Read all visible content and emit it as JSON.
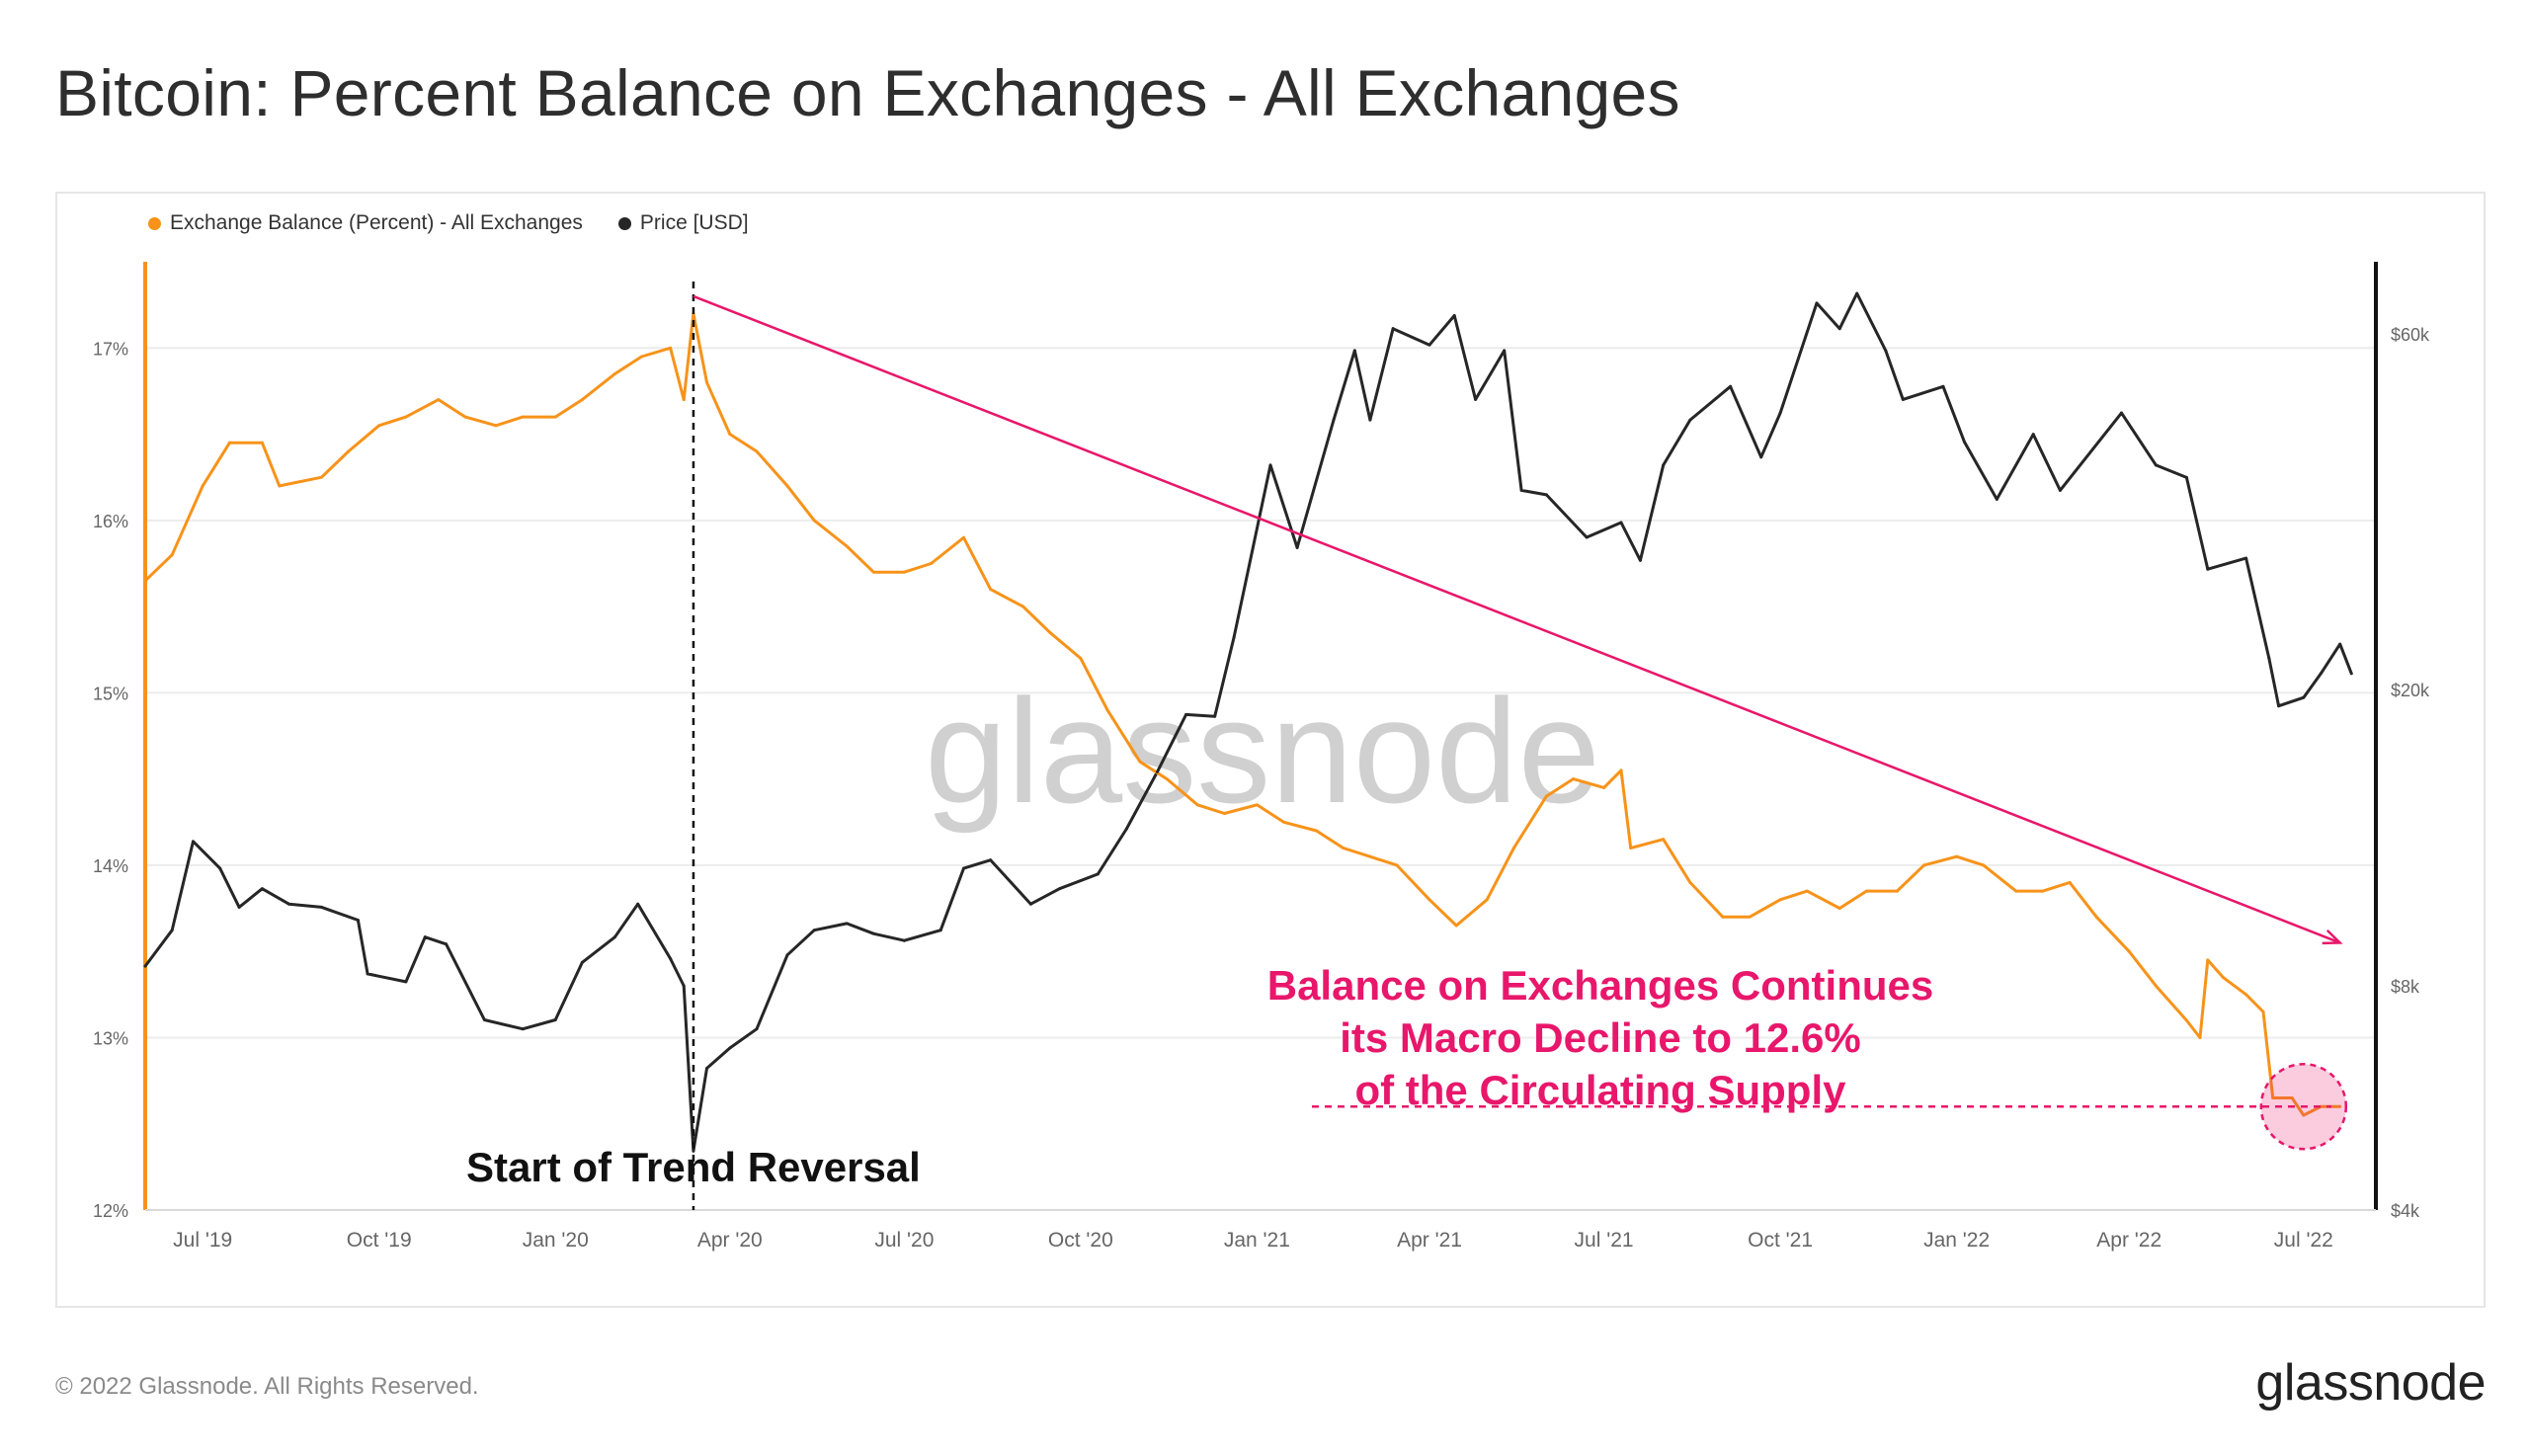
{
  "title": "Bitcoin: Percent Balance on Exchanges - All Exchanges",
  "footer": {
    "copyright": "© 2022 Glassnode. All Rights Reserved.",
    "logo_text": "glassnode"
  },
  "watermark": "glassnode",
  "colors": {
    "balance": "#f7931a",
    "price": "#262626",
    "annotation": "#e8176b",
    "grid": "#ececec",
    "axis_text": "#666666"
  },
  "chart_data": {
    "type": "line",
    "legend": [
      {
        "name": "Exchange Balance (Percent) - All Exchanges",
        "color": "#f7931a"
      },
      {
        "name": "Price [USD]",
        "color": "#262626"
      }
    ],
    "x_ticks": [
      "Jul '19",
      "Oct '19",
      "Jan '20",
      "Apr '20",
      "Jul '20",
      "Oct '20",
      "Jan '21",
      "Apr '21",
      "Jul '21",
      "Oct '21",
      "Jan '22",
      "Apr '22",
      "Jul '22"
    ],
    "y_left": {
      "ticks": [
        "17%",
        "16%",
        "15%",
        "14%",
        "13%",
        "12%"
      ],
      "values": [
        17,
        16,
        15,
        14,
        13,
        12
      ],
      "range": [
        12,
        17.5
      ]
    },
    "y_right": {
      "ticks": [
        "$60k",
        "$20k",
        "$8k",
        "$4k"
      ],
      "values": [
        60000,
        20000,
        8000,
        4000
      ],
      "scale": "log",
      "range": [
        4000,
        75000
      ]
    },
    "series": [
      {
        "name": "Exchange Balance (Percent) - All Exchanges",
        "axis": "left",
        "points": [
          [
            "2019-06-01",
            15.65
          ],
          [
            "2019-06-15",
            15.8
          ],
          [
            "2019-07-01",
            16.2
          ],
          [
            "2019-07-15",
            16.45
          ],
          [
            "2019-08-01",
            16.45
          ],
          [
            "2019-08-10",
            16.2
          ],
          [
            "2019-09-01",
            16.25
          ],
          [
            "2019-09-15",
            16.4
          ],
          [
            "2019-10-01",
            16.55
          ],
          [
            "2019-10-15",
            16.6
          ],
          [
            "2019-11-01",
            16.7
          ],
          [
            "2019-11-15",
            16.6
          ],
          [
            "2019-12-01",
            16.55
          ],
          [
            "2019-12-15",
            16.6
          ],
          [
            "2020-01-01",
            16.6
          ],
          [
            "2020-01-15",
            16.7
          ],
          [
            "2020-02-01",
            16.85
          ],
          [
            "2020-02-15",
            16.95
          ],
          [
            "2020-03-01",
            17.0
          ],
          [
            "2020-03-08",
            16.7
          ],
          [
            "2020-03-13",
            17.2
          ],
          [
            "2020-03-20",
            16.8
          ],
          [
            "2020-04-01",
            16.5
          ],
          [
            "2020-04-15",
            16.4
          ],
          [
            "2020-05-01",
            16.2
          ],
          [
            "2020-05-15",
            16.0
          ],
          [
            "2020-06-01",
            15.85
          ],
          [
            "2020-06-15",
            15.7
          ],
          [
            "2020-07-01",
            15.7
          ],
          [
            "2020-07-15",
            15.75
          ],
          [
            "2020-08-01",
            15.9
          ],
          [
            "2020-08-15",
            15.6
          ],
          [
            "2020-09-01",
            15.5
          ],
          [
            "2020-09-15",
            15.35
          ],
          [
            "2020-10-01",
            15.2
          ],
          [
            "2020-10-15",
            14.9
          ],
          [
            "2020-11-01",
            14.6
          ],
          [
            "2020-11-15",
            14.5
          ],
          [
            "2020-12-01",
            14.35
          ],
          [
            "2020-12-15",
            14.3
          ],
          [
            "2021-01-01",
            14.35
          ],
          [
            "2021-01-15",
            14.25
          ],
          [
            "2021-02-01",
            14.2
          ],
          [
            "2021-02-15",
            14.1
          ],
          [
            "2021-03-01",
            14.05
          ],
          [
            "2021-03-15",
            14.0
          ],
          [
            "2021-04-01",
            13.8
          ],
          [
            "2021-04-15",
            13.65
          ],
          [
            "2021-05-01",
            13.8
          ],
          [
            "2021-05-15",
            14.1
          ],
          [
            "2021-06-01",
            14.4
          ],
          [
            "2021-06-15",
            14.5
          ],
          [
            "2021-07-01",
            14.45
          ],
          [
            "2021-07-10",
            14.55
          ],
          [
            "2021-07-15",
            14.1
          ],
          [
            "2021-08-01",
            14.15
          ],
          [
            "2021-08-15",
            13.9
          ],
          [
            "2021-09-01",
            13.7
          ],
          [
            "2021-09-15",
            13.7
          ],
          [
            "2021-10-01",
            13.8
          ],
          [
            "2021-10-15",
            13.85
          ],
          [
            "2021-11-01",
            13.75
          ],
          [
            "2021-11-15",
            13.85
          ],
          [
            "2021-12-01",
            13.85
          ],
          [
            "2021-12-15",
            14.0
          ],
          [
            "2022-01-01",
            14.05
          ],
          [
            "2022-01-15",
            14.0
          ],
          [
            "2022-02-01",
            13.85
          ],
          [
            "2022-02-15",
            13.85
          ],
          [
            "2022-03-01",
            13.9
          ],
          [
            "2022-03-15",
            13.7
          ],
          [
            "2022-04-01",
            13.5
          ],
          [
            "2022-04-15",
            13.3
          ],
          [
            "2022-05-01",
            13.1
          ],
          [
            "2022-05-08",
            13.0
          ],
          [
            "2022-05-12",
            13.45
          ],
          [
            "2022-05-20",
            13.35
          ],
          [
            "2022-06-01",
            13.25
          ],
          [
            "2022-06-10",
            13.15
          ],
          [
            "2022-06-15",
            12.65
          ],
          [
            "2022-06-25",
            12.65
          ],
          [
            "2022-07-01",
            12.55
          ],
          [
            "2022-07-10",
            12.6
          ],
          [
            "2022-07-20",
            12.6
          ]
        ]
      },
      {
        "name": "Price [USD]",
        "axis": "right",
        "points": [
          [
            "2019-06-01",
            8500
          ],
          [
            "2019-06-15",
            9500
          ],
          [
            "2019-06-26",
            12500
          ],
          [
            "2019-07-10",
            11500
          ],
          [
            "2019-07-20",
            10200
          ],
          [
            "2019-08-01",
            10800
          ],
          [
            "2019-08-15",
            10300
          ],
          [
            "2019-09-01",
            10200
          ],
          [
            "2019-09-20",
            9800
          ],
          [
            "2019-09-25",
            8300
          ],
          [
            "2019-10-15",
            8100
          ],
          [
            "2019-10-25",
            9300
          ],
          [
            "2019-11-05",
            9100
          ],
          [
            "2019-11-25",
            7200
          ],
          [
            "2019-12-15",
            7000
          ],
          [
            "2020-01-01",
            7200
          ],
          [
            "2020-01-15",
            8600
          ],
          [
            "2020-02-01",
            9300
          ],
          [
            "2020-02-13",
            10300
          ],
          [
            "2020-03-01",
            8700
          ],
          [
            "2020-03-08",
            8000
          ],
          [
            "2020-03-13",
            4800
          ],
          [
            "2020-03-20",
            6200
          ],
          [
            "2020-04-01",
            6600
          ],
          [
            "2020-04-15",
            7000
          ],
          [
            "2020-05-01",
            8800
          ],
          [
            "2020-05-15",
            9500
          ],
          [
            "2020-06-01",
            9700
          ],
          [
            "2020-06-15",
            9400
          ],
          [
            "2020-07-01",
            9200
          ],
          [
            "2020-07-20",
            9500
          ],
          [
            "2020-08-01",
            11500
          ],
          [
            "2020-08-15",
            11800
          ],
          [
            "2020-09-05",
            10300
          ],
          [
            "2020-09-20",
            10800
          ],
          [
            "2020-10-10",
            11300
          ],
          [
            "2020-10-25",
            13000
          ],
          [
            "2020-11-10",
            15500
          ],
          [
            "2020-11-25",
            18500
          ],
          [
            "2020-12-10",
            18400
          ],
          [
            "2020-12-20",
            23500
          ],
          [
            "2021-01-08",
            40000
          ],
          [
            "2021-01-22",
            31000
          ],
          [
            "2021-02-10",
            46000
          ],
          [
            "2021-02-21",
            57000
          ],
          [
            "2021-03-01",
            46000
          ],
          [
            "2021-03-13",
            61000
          ],
          [
            "2021-04-01",
            58000
          ],
          [
            "2021-04-14",
            63500
          ],
          [
            "2021-04-25",
            49000
          ],
          [
            "2021-05-10",
            57000
          ],
          [
            "2021-05-19",
            37000
          ],
          [
            "2021-06-01",
            36500
          ],
          [
            "2021-06-22",
            32000
          ],
          [
            "2021-07-10",
            33500
          ],
          [
            "2021-07-20",
            29800
          ],
          [
            "2021-08-01",
            40000
          ],
          [
            "2021-08-15",
            46000
          ],
          [
            "2021-09-05",
            51000
          ],
          [
            "2021-09-21",
            41000
          ],
          [
            "2021-10-01",
            47000
          ],
          [
            "2021-10-20",
            66000
          ],
          [
            "2021-11-01",
            61000
          ],
          [
            "2021-11-10",
            68000
          ],
          [
            "2021-11-25",
            57000
          ],
          [
            "2021-12-04",
            49000
          ],
          [
            "2021-12-25",
            51000
          ],
          [
            "2022-01-05",
            43000
          ],
          [
            "2022-01-22",
            36000
          ],
          [
            "2022-02-10",
            44000
          ],
          [
            "2022-02-24",
            37000
          ],
          [
            "2022-03-28",
            47000
          ],
          [
            "2022-04-15",
            40000
          ],
          [
            "2022-05-01",
            38500
          ],
          [
            "2022-05-12",
            29000
          ],
          [
            "2022-06-01",
            30000
          ],
          [
            "2022-06-13",
            22000
          ],
          [
            "2022-06-18",
            19000
          ],
          [
            "2022-07-01",
            19500
          ],
          [
            "2022-07-10",
            21000
          ],
          [
            "2022-07-20",
            23000
          ],
          [
            "2022-07-26",
            21000
          ]
        ]
      }
    ],
    "annotations": {
      "event_line_date": "2020-03-13",
      "event_label": "Start of Trend Reversal",
      "trend_arrow": {
        "from": [
          "2020-03-13",
          17.3
        ],
        "to": [
          "2022-07-20",
          13.55
        ]
      },
      "callout_lines": [
        "Balance on Exchanges Continues",
        "its Macro Decline to 12.6%",
        "of the Circulating Supply"
      ],
      "reference_level": 12.6
    }
  }
}
